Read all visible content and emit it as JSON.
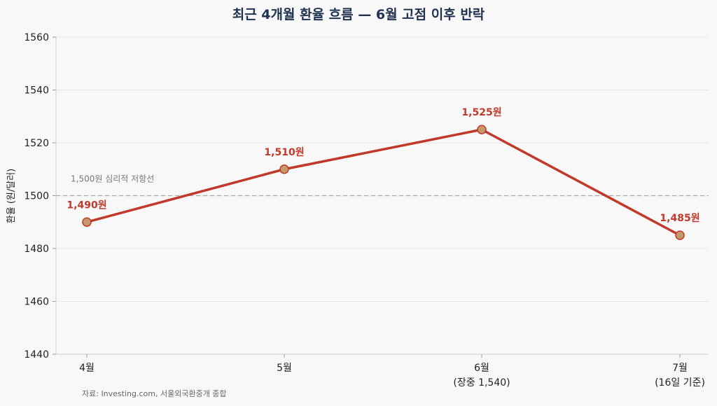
{
  "chart_data": {
    "type": "line",
    "title": "최근 4개월 환율 흐름 — 6월 고점 이후 반락",
    "ylabel": "환율 (원/달러)",
    "xlabel": "",
    "categories": [
      "4월",
      "5월",
      "6월",
      "7월"
    ],
    "category_sublabels": [
      "",
      "",
      "(장중 1,540)",
      "(16일 기준)"
    ],
    "series": [
      {
        "values": [
          1490,
          1510,
          1525,
          1485
        ],
        "data_labels": [
          "1,490원",
          "1,510원",
          "1,525원",
          "1,485원"
        ]
      }
    ],
    "ylim": [
      1440,
      1560
    ],
    "yticks": [
      1440,
      1460,
      1480,
      1500,
      1520,
      1540,
      1560
    ],
    "reference_line": {
      "value": 1500,
      "label": "1,500원 심리적 저항선",
      "style": "dashed"
    },
    "grid": "horizontal",
    "legend": "none",
    "source": "자료: Investing.com, 서울외국환중개 종합",
    "colors": {
      "line": "#c0392b",
      "marker_fill": "#c49a6c",
      "marker_edge": "#c0392b",
      "reference": "#aaaaaa",
      "grid": "#e6e6e6",
      "title": "#1f3350"
    }
  }
}
